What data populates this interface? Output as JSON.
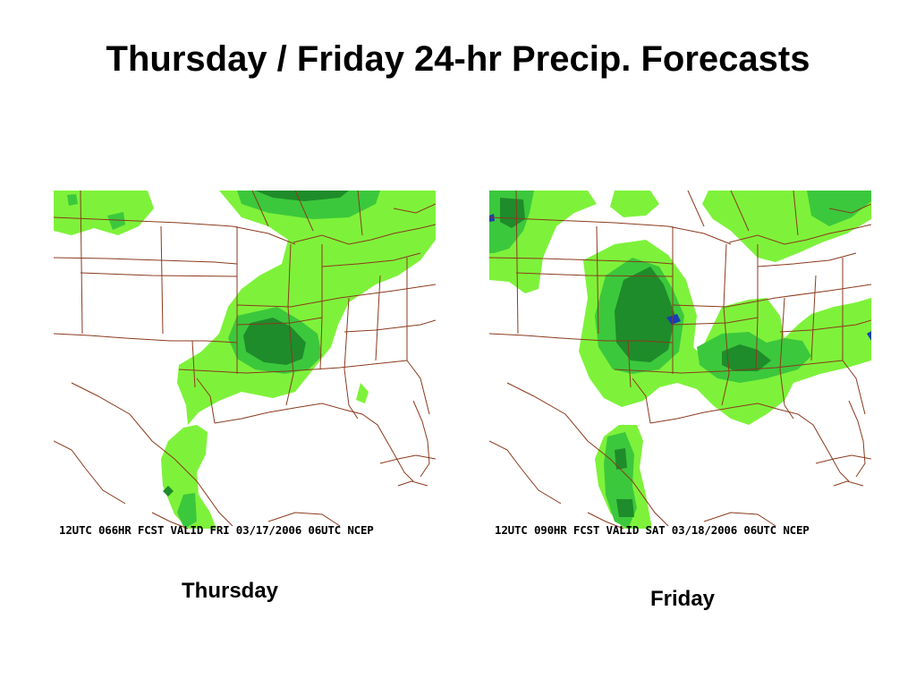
{
  "title": "Thursday / Friday 24-hr Precip. Forecasts",
  "colors": {
    "light_precip": "#7ef23a",
    "medium_precip": "#3cc83c",
    "heavy_precip": "#1e8c2a",
    "extreme_precip": "#1a3cb4",
    "boundaries": "#8b3a1e",
    "background": "#ffffff"
  },
  "maps": [
    {
      "caption": "12UTC 066HR FCST VALID FRI 03/17/2006 06UTC  NCEP",
      "label": "Thursday"
    },
    {
      "caption": "12UTC 090HR FCST VALID SAT 03/18/2006 06UTC  NCEP",
      "label": "Friday"
    }
  ]
}
